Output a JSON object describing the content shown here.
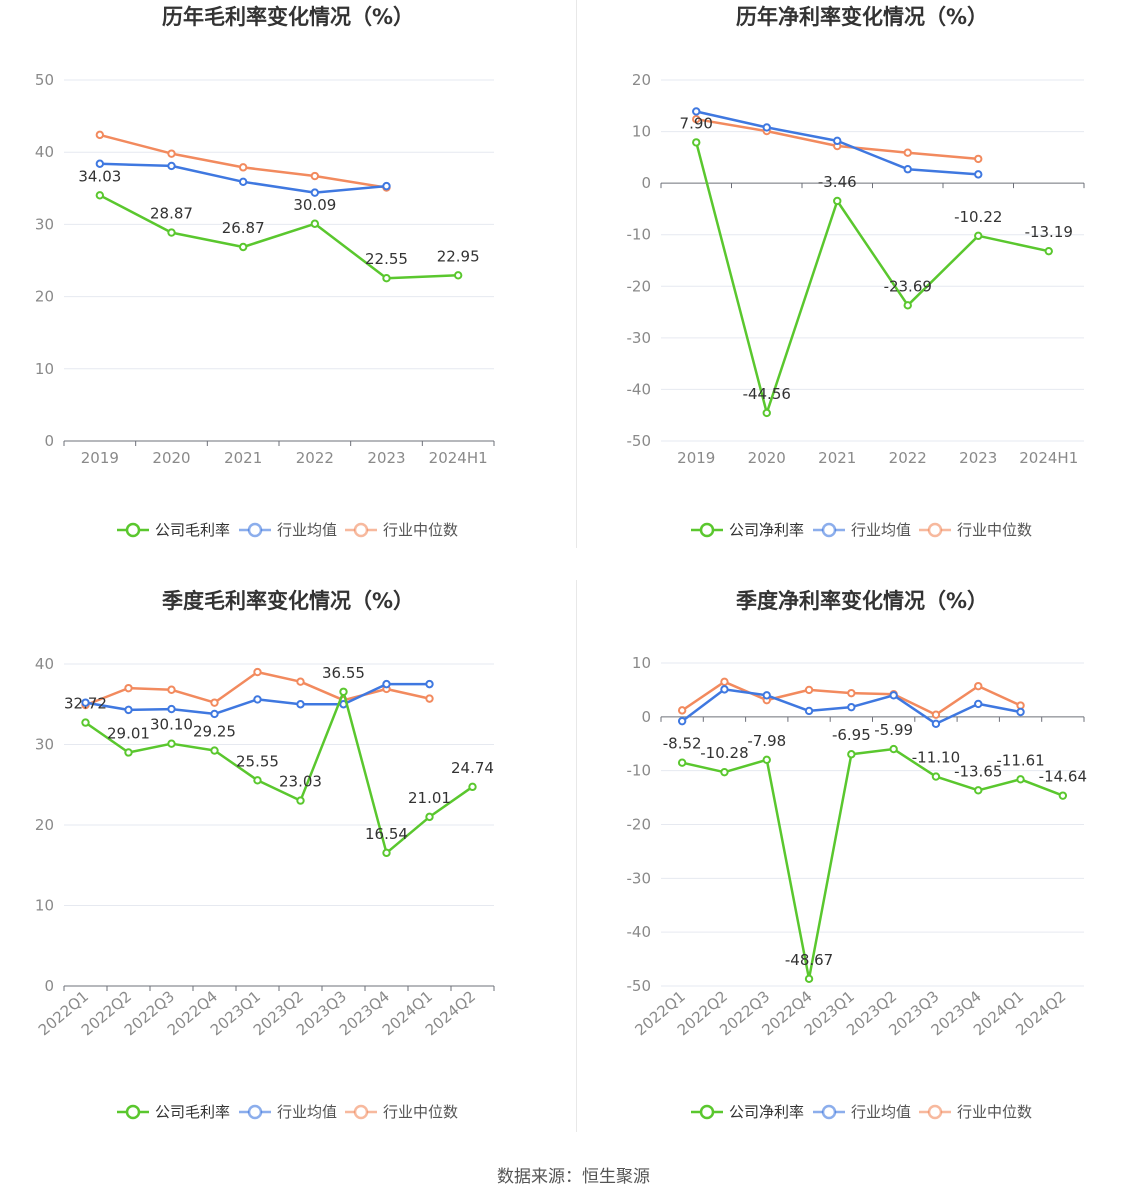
{
  "legend": {
    "company_gross": "公司毛利率",
    "company_net": "公司净利率",
    "industry_avg": "行业均值",
    "industry_median": "行业中位数"
  },
  "colors": {
    "company": "#5ac72e",
    "industry_avg": "#3f78e0",
    "industry_median": "#f28a5e"
  },
  "source": "数据来源：恒生聚源",
  "charts": [
    {
      "id": "annual-gross",
      "title": "历年毛利率变化情况（%）",
      "legend_company_key": "company_gross",
      "categories": [
        "2019",
        "2020",
        "2021",
        "2022",
        "2023",
        "2024H1"
      ],
      "ylim": [
        0,
        50
      ],
      "yticks": [
        0,
        10,
        20,
        30,
        40,
        50
      ],
      "rotate_x": false,
      "series": [
        {
          "name": "公司毛利率",
          "color_key": "company",
          "values": [
            34.03,
            28.87,
            26.87,
            30.09,
            22.55,
            22.95
          ],
          "labels": [
            "34.03",
            "28.87",
            "26.87",
            "30.09",
            "22.55",
            "22.95"
          ]
        },
        {
          "name": "行业均值",
          "color_key": "industry_avg",
          "values": [
            38.4,
            38.1,
            35.9,
            34.4,
            35.3,
            null
          ]
        },
        {
          "name": "行业中位数",
          "color_key": "industry_median",
          "values": [
            42.4,
            39.8,
            37.9,
            36.7,
            35.1,
            null
          ]
        }
      ]
    },
    {
      "id": "annual-net",
      "title": "历年净利率变化情况（%）",
      "legend_company_key": "company_net",
      "categories": [
        "2019",
        "2020",
        "2021",
        "2022",
        "2023",
        "2024H1"
      ],
      "ylim": [
        -50,
        20
      ],
      "yticks": [
        -50,
        -40,
        -30,
        -20,
        -10,
        0,
        10,
        20
      ],
      "rotate_x": false,
      "series": [
        {
          "name": "公司净利率",
          "color_key": "company",
          "values": [
            7.9,
            -44.56,
            -3.46,
            -23.69,
            -10.22,
            -13.19
          ],
          "labels": [
            "7.90",
            "-44.56",
            "-3.46",
            "-23.69",
            "-10.22",
            "-13.19"
          ]
        },
        {
          "name": "行业均值",
          "color_key": "industry_avg",
          "values": [
            13.9,
            10.8,
            8.2,
            2.7,
            1.7,
            null
          ]
        },
        {
          "name": "行业中位数",
          "color_key": "industry_median",
          "values": [
            12.4,
            10.1,
            7.2,
            5.9,
            4.7,
            null
          ]
        }
      ]
    },
    {
      "id": "quarterly-gross",
      "title": "季度毛利率变化情况（%）",
      "legend_company_key": "company_gross",
      "categories": [
        "2022Q1",
        "2022Q2",
        "2022Q3",
        "2022Q4",
        "2023Q1",
        "2023Q2",
        "2023Q3",
        "2023Q4",
        "2024Q1",
        "2024Q2"
      ],
      "ylim": [
        0,
        40
      ],
      "yticks": [
        0,
        10,
        20,
        30,
        40
      ],
      "rotate_x": true,
      "series": [
        {
          "name": "公司毛利率",
          "color_key": "company",
          "values": [
            32.72,
            29.01,
            30.1,
            29.25,
            25.55,
            23.03,
            36.55,
            16.54,
            21.01,
            24.74
          ],
          "labels": [
            "32.72",
            "29.01",
            "30.10",
            "29.25",
            "25.55",
            "23.03",
            "36.55",
            "16.54",
            "21.01",
            "24.74"
          ]
        },
        {
          "name": "行业均值",
          "color_key": "industry_avg",
          "values": [
            35.2,
            34.3,
            34.4,
            33.8,
            35.6,
            35.0,
            35.0,
            37.5,
            37.5,
            null
          ]
        },
        {
          "name": "行业中位数",
          "color_key": "industry_median",
          "values": [
            34.9,
            37.0,
            36.8,
            35.2,
            39.0,
            37.8,
            35.5,
            36.9,
            35.7,
            null
          ]
        }
      ]
    },
    {
      "id": "quarterly-net",
      "title": "季度净利率变化情况（%）",
      "legend_company_key": "company_net",
      "categories": [
        "2022Q1",
        "2022Q2",
        "2022Q3",
        "2022Q4",
        "2023Q1",
        "2023Q2",
        "2023Q3",
        "2023Q4",
        "2024Q1",
        "2024Q2"
      ],
      "ylim": [
        -50,
        10
      ],
      "yticks": [
        -50,
        -40,
        -30,
        -20,
        -10,
        0,
        10
      ],
      "rotate_x": true,
      "series": [
        {
          "name": "公司净利率",
          "color_key": "company",
          "values": [
            -8.52,
            -10.28,
            -7.98,
            -48.67,
            -6.95,
            -5.99,
            -11.1,
            -13.65,
            -11.61,
            -14.64
          ],
          "labels": [
            "-8.52",
            "-10.28",
            "-7.98",
            "-48.67",
            "-6.95",
            "-5.99",
            "-11.10",
            "-13.65",
            "-11.61",
            "-14.64"
          ]
        },
        {
          "name": "行业均值",
          "color_key": "industry_avg",
          "values": [
            -0.8,
            5.1,
            4.0,
            1.1,
            1.8,
            4.0,
            -1.3,
            2.4,
            0.9,
            null
          ]
        },
        {
          "name": "行业中位数",
          "color_key": "industry_median",
          "values": [
            1.2,
            6.5,
            3.1,
            5.0,
            4.4,
            4.2,
            0.4,
            5.7,
            2.1,
            null
          ]
        }
      ]
    }
  ],
  "chart_data": [
    {
      "type": "line",
      "title": "历年毛利率变化情况（%）",
      "x": [
        "2019",
        "2020",
        "2021",
        "2022",
        "2023",
        "2024H1"
      ],
      "ylim": [
        0,
        50
      ],
      "grid": true,
      "legend_placement": "bottom",
      "series": [
        {
          "name": "公司毛利率",
          "values": [
            34.03,
            28.87,
            26.87,
            30.09,
            22.55,
            22.95
          ]
        },
        {
          "name": "行业均值",
          "values": [
            38.4,
            38.1,
            35.9,
            34.4,
            35.3,
            null
          ]
        },
        {
          "name": "行业中位数",
          "values": [
            42.4,
            39.8,
            37.9,
            36.7,
            35.1,
            null
          ]
        }
      ]
    },
    {
      "type": "line",
      "title": "历年净利率变化情况（%）",
      "x": [
        "2019",
        "2020",
        "2021",
        "2022",
        "2023",
        "2024H1"
      ],
      "ylim": [
        -50,
        20
      ],
      "grid": true,
      "legend_placement": "bottom",
      "series": [
        {
          "name": "公司净利率",
          "values": [
            7.9,
            -44.56,
            -3.46,
            -23.69,
            -10.22,
            -13.19
          ]
        },
        {
          "name": "行业均值",
          "values": [
            13.9,
            10.8,
            8.2,
            2.7,
            1.7,
            null
          ]
        },
        {
          "name": "行业中位数",
          "values": [
            12.4,
            10.1,
            7.2,
            5.9,
            4.7,
            null
          ]
        }
      ]
    },
    {
      "type": "line",
      "title": "季度毛利率变化情况（%）",
      "x": [
        "2022Q1",
        "2022Q2",
        "2022Q3",
        "2022Q4",
        "2023Q1",
        "2023Q2",
        "2023Q3",
        "2023Q4",
        "2024Q1",
        "2024Q2"
      ],
      "ylim": [
        0,
        40
      ],
      "grid": true,
      "legend_placement": "bottom",
      "series": [
        {
          "name": "公司毛利率",
          "values": [
            32.72,
            29.01,
            30.1,
            29.25,
            25.55,
            23.03,
            36.55,
            16.54,
            21.01,
            24.74
          ]
        },
        {
          "name": "行业均值",
          "values": [
            35.2,
            34.3,
            34.4,
            33.8,
            35.6,
            35.0,
            35.0,
            37.5,
            37.5,
            null
          ]
        },
        {
          "name": "行业中位数",
          "values": [
            34.9,
            37.0,
            36.8,
            35.2,
            39.0,
            37.8,
            35.5,
            36.9,
            35.7,
            null
          ]
        }
      ]
    },
    {
      "type": "line",
      "title": "季度净利率变化情况（%）",
      "x": [
        "2022Q1",
        "2022Q2",
        "2022Q3",
        "2022Q4",
        "2023Q1",
        "2023Q2",
        "2023Q3",
        "2023Q4",
        "2024Q1",
        "2024Q2"
      ],
      "ylim": [
        -50,
        10
      ],
      "grid": true,
      "legend_placement": "bottom",
      "series": [
        {
          "name": "公司净利率",
          "values": [
            -8.52,
            -10.28,
            -7.98,
            -48.67,
            -6.95,
            -5.99,
            -11.1,
            -13.65,
            -11.61,
            -14.64
          ]
        },
        {
          "name": "行业均值",
          "values": [
            -0.8,
            5.1,
            4.0,
            1.1,
            1.8,
            4.0,
            -1.3,
            2.4,
            0.9,
            null
          ]
        },
        {
          "name": "行业中位数",
          "values": [
            1.2,
            6.5,
            3.1,
            5.0,
            4.4,
            4.2,
            0.4,
            5.7,
            2.1,
            null
          ]
        }
      ]
    }
  ]
}
